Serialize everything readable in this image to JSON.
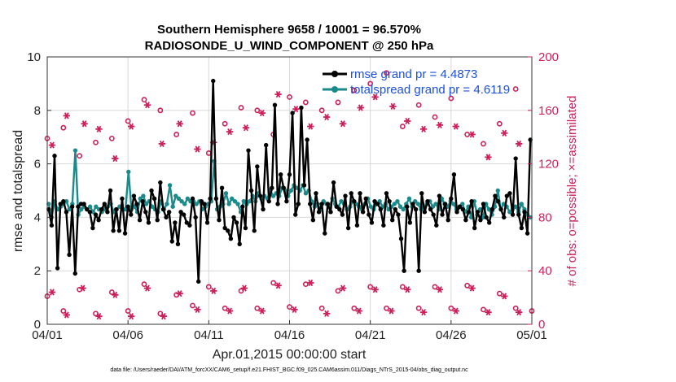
{
  "chart_data": {
    "type": "line",
    "title_line1": "Southern Hemisphere 9658 / 10001 = 96.570%",
    "title_line2": "RADIOSONDE_U_WIND_COMPONENT @ 250 hPa",
    "ylabel": "rmse and totalspread",
    "y2label": "# of obs: o=possible; ×=assimilated",
    "xlabel": "Apr.01,2015 00:00:00 start",
    "footnote": "data file: /Users/raeder/DAI/ATM_forcXX/CAM6_setup/f.e21.FHIST_BGC.f09_025.CAM6assim.011/Diags_NTrS_2015-04/obs_diag_output.nc",
    "xlim": [
      0,
      30
    ],
    "ylim": [
      0,
      10
    ],
    "y2lim": [
      0,
      200
    ],
    "x_ticks": [
      0,
      5,
      10,
      15,
      20,
      25,
      30
    ],
    "x_tick_labels": [
      "04/01",
      "04/06",
      "04/11",
      "04/16",
      "04/21",
      "04/26",
      "05/01"
    ],
    "y_ticks": [
      "0",
      "2",
      "4",
      "6",
      "8",
      "10"
    ],
    "y2_ticks": [
      "0",
      "40",
      "80",
      "120",
      "160",
      "200"
    ],
    "colors": {
      "rmse": "#000000",
      "spread": "#1a8a8a",
      "obs": "#cc1f5a",
      "legend_text": "#1d4fe0"
    },
    "series": [
      {
        "name": "rmse grand pr = 4.4873",
        "values": [
          4.3,
          3.7,
          6.3,
          2.1,
          4.5,
          4.6,
          4.2,
          2.6,
          4.4,
          1.9,
          4.4,
          4.5,
          4.5,
          4.3,
          4.2,
          3.6,
          4.1,
          3.9,
          4.3,
          4.5,
          4.2,
          5.0,
          3.5,
          4.3,
          3.5,
          4.7,
          3.4,
          4.4,
          4.1,
          4.8,
          4.5,
          3.9,
          4.6,
          4.2,
          3.8,
          5.0,
          4.7,
          3.9,
          5.3,
          4.3,
          4.0,
          4.2,
          3.1,
          3.8,
          3.0,
          4.2,
          4.1,
          3.8,
          3.7,
          4.7,
          4.0,
          1.6,
          4.6,
          4.5,
          3.8,
          4.7,
          9.1,
          4.7,
          3.9,
          5.1,
          3.6,
          3.5,
          3.2,
          4.0,
          3.8,
          3.0,
          4.4,
          3.6,
          6.5,
          5.0,
          3.5,
          5.9,
          4.8,
          4.3,
          6.7,
          4.6,
          5.1,
          8.2,
          4.5,
          5.6,
          5.1,
          4.6,
          5.6,
          7.9,
          4.1,
          4.5,
          8.1,
          5.2,
          6.9,
          4.5,
          3.9,
          4.9,
          4.2,
          4.5,
          3.4,
          4.5,
          4.2,
          5.3,
          4.4,
          4.3,
          4.1,
          4.8,
          3.6,
          4.9,
          4.6,
          3.7,
          4.9,
          4.2,
          4.7,
          4.1,
          3.8,
          4.6,
          4.5,
          4.3,
          3.7,
          4.9,
          4.6,
          3.9,
          4.3,
          4.1,
          3.2,
          2.0,
          4.4,
          3.8,
          4.5,
          4.3,
          2.0,
          4.9,
          4.2,
          4.6,
          4.3,
          4.1,
          3.7,
          4.8,
          4.1,
          4.5,
          3.9,
          4.7,
          5.6,
          4.2,
          4.4,
          4.3,
          3.9,
          4.2,
          4.6,
          3.6,
          4.2,
          3.9,
          4.5,
          4.0,
          3.8,
          4.3,
          4.8,
          4.6,
          4.3,
          4.0,
          4.8,
          4.9,
          4.1,
          6.2,
          4.1,
          3.6,
          4.2,
          3.4,
          6.9
        ],
        "color": "#000000"
      },
      {
        "name": "totalspread grand pr = 4.6119",
        "values": [
          4.5,
          4.0,
          4.6,
          4.3,
          4.4,
          4.5,
          4.6,
          4.3,
          4.5,
          6.5,
          4.1,
          4.3,
          4.4,
          4.3,
          4.4,
          4.2,
          4.4,
          4.3,
          4.2,
          4.3,
          4.4,
          4.5,
          4.2,
          4.3,
          4.4,
          4.3,
          4.3,
          5.7,
          4.3,
          4.4,
          4.2,
          4.7,
          4.8,
          4.5,
          4.6,
          4.4,
          4.3,
          4.2,
          4.6,
          4.3,
          4.5,
          5.2,
          4.4,
          4.8,
          4.7,
          4.6,
          4.5,
          4.7,
          4.6,
          4.6,
          4.5,
          4.6,
          4.3,
          4.4,
          4.5,
          4.6,
          6.1,
          4.3,
          4.4,
          4.5,
          4.9,
          4.5,
          4.7,
          4.6,
          4.5,
          4.2,
          4.6,
          4.5,
          4.6,
          4.8,
          4.6,
          4.9,
          4.7,
          4.8,
          4.7,
          5.0,
          4.8,
          4.9,
          4.8,
          5.1,
          5.0,
          4.8,
          5.0,
          5.2,
          5.1,
          5.0,
          5.2,
          4.9,
          5.0,
          4.6,
          4.4,
          4.5,
          4.3,
          4.6,
          4.5,
          4.4,
          4.7,
          4.5,
          4.4,
          4.6,
          4.5,
          4.3,
          4.4,
          4.6,
          4.5,
          4.4,
          4.3,
          4.5,
          4.7,
          4.4,
          4.3,
          4.5,
          4.6,
          4.4,
          4.5,
          4.3,
          4.4,
          4.5,
          4.6,
          4.4,
          4.3,
          4.5,
          4.7,
          4.4,
          4.6,
          4.5,
          4.3,
          4.4,
          4.5,
          4.6,
          4.4,
          4.5,
          4.3,
          4.7,
          4.5,
          4.4,
          4.6,
          4.5,
          4.3,
          4.4,
          4.5,
          4.2,
          4.4,
          4.0,
          4.6,
          4.1,
          4.3,
          4.0,
          4.5,
          4.3,
          4.1,
          4.4,
          5.0,
          4.3,
          4.5,
          4.4,
          4.2,
          4.3,
          4.4,
          4.2,
          4.5,
          4.3,
          4.1,
          4.0
        ],
        "color": "#1a8a8a"
      }
    ],
    "obs_assimilated_high": [
      {
        "x": 0.3,
        "y": 134
      },
      {
        "x": 1.2,
        "y": 156
      },
      {
        "x": 2.3,
        "y": 150
      },
      {
        "x": 3.2,
        "y": 146
      },
      {
        "x": 4.2,
        "y": 124
      },
      {
        "x": 5.2,
        "y": 148
      },
      {
        "x": 6.2,
        "y": 164
      },
      {
        "x": 7.1,
        "y": 135
      },
      {
        "x": 8.2,
        "y": 150
      },
      {
        "x": 9.3,
        "y": 131
      },
      {
        "x": 10.3,
        "y": 136
      },
      {
        "x": 11.3,
        "y": 144
      },
      {
        "x": 12.3,
        "y": 147
      },
      {
        "x": 13.3,
        "y": 158
      },
      {
        "x": 14.3,
        "y": 172
      },
      {
        "x": 15.4,
        "y": 161
      },
      {
        "x": 16.3,
        "y": 148
      },
      {
        "x": 17.3,
        "y": 155
      },
      {
        "x": 18.3,
        "y": 150
      },
      {
        "x": 19.4,
        "y": 162
      },
      {
        "x": 20.3,
        "y": 170
      },
      {
        "x": 21.4,
        "y": 163
      },
      {
        "x": 22.3,
        "y": 152
      },
      {
        "x": 23.3,
        "y": 146
      },
      {
        "x": 24.3,
        "y": 149
      },
      {
        "x": 25.3,
        "y": 148
      },
      {
        "x": 26.3,
        "y": 142
      },
      {
        "x": 27.3,
        "y": 125
      },
      {
        "x": 28.3,
        "y": 143
      },
      {
        "x": 29.2,
        "y": 135
      }
    ],
    "obs_possible_high": [
      {
        "x": 0.0,
        "y": 139
      },
      {
        "x": 1.0,
        "y": 147
      },
      {
        "x": 2.0,
        "y": 126
      },
      {
        "x": 3.0,
        "y": 136
      },
      {
        "x": 4.0,
        "y": 139
      },
      {
        "x": 5.0,
        "y": 152
      },
      {
        "x": 6.0,
        "y": 168
      },
      {
        "x": 7.0,
        "y": 160
      },
      {
        "x": 8.0,
        "y": 142
      },
      {
        "x": 9.0,
        "y": 158
      },
      {
        "x": 10.0,
        "y": 128
      },
      {
        "x": 11.0,
        "y": 150
      },
      {
        "x": 12.0,
        "y": 162
      },
      {
        "x": 13.0,
        "y": 160
      },
      {
        "x": 14.0,
        "y": 142
      },
      {
        "x": 15.0,
        "y": 170
      },
      {
        "x": 16.0,
        "y": 166
      },
      {
        "x": 17.0,
        "y": 160
      },
      {
        "x": 18.0,
        "y": 166
      },
      {
        "x": 19.0,
        "y": 175
      },
      {
        "x": 20.0,
        "y": 180
      },
      {
        "x": 21.0,
        "y": 188
      },
      {
        "x": 22.0,
        "y": 148
      },
      {
        "x": 23.0,
        "y": 164
      },
      {
        "x": 24.0,
        "y": 155
      },
      {
        "x": 25.0,
        "y": 169
      },
      {
        "x": 26.0,
        "y": 142
      },
      {
        "x": 27.0,
        "y": 135
      },
      {
        "x": 28.0,
        "y": 150
      },
      {
        "x": 29.0,
        "y": 176
      }
    ],
    "obs_assimilated_low": [
      {
        "x": 0.3,
        "y": 24
      },
      {
        "x": 1.2,
        "y": 7
      },
      {
        "x": 2.2,
        "y": 27
      },
      {
        "x": 3.2,
        "y": 6
      },
      {
        "x": 4.2,
        "y": 22
      },
      {
        "x": 5.2,
        "y": 6
      },
      {
        "x": 6.2,
        "y": 27
      },
      {
        "x": 7.2,
        "y": 6
      },
      {
        "x": 8.2,
        "y": 23
      },
      {
        "x": 9.3,
        "y": 11
      },
      {
        "x": 10.3,
        "y": 25
      },
      {
        "x": 11.3,
        "y": 10
      },
      {
        "x": 12.2,
        "y": 27
      },
      {
        "x": 13.3,
        "y": 10
      },
      {
        "x": 14.3,
        "y": 29
      },
      {
        "x": 15.3,
        "y": 11
      },
      {
        "x": 16.3,
        "y": 31
      },
      {
        "x": 17.3,
        "y": 8
      },
      {
        "x": 18.3,
        "y": 27
      },
      {
        "x": 19.3,
        "y": 10
      },
      {
        "x": 20.3,
        "y": 26
      },
      {
        "x": 21.3,
        "y": 10
      },
      {
        "x": 22.3,
        "y": 26
      },
      {
        "x": 23.3,
        "y": 9
      },
      {
        "x": 24.3,
        "y": 26
      },
      {
        "x": 25.3,
        "y": 10
      },
      {
        "x": 26.3,
        "y": 27
      },
      {
        "x": 27.3,
        "y": 9
      },
      {
        "x": 28.3,
        "y": 21
      },
      {
        "x": 29.2,
        "y": 9
      }
    ],
    "obs_possible_low": [
      {
        "x": 0.0,
        "y": 21
      },
      {
        "x": 1.0,
        "y": 10
      },
      {
        "x": 2.0,
        "y": 26
      },
      {
        "x": 3.0,
        "y": 8
      },
      {
        "x": 4.0,
        "y": 24
      },
      {
        "x": 5.0,
        "y": 10
      },
      {
        "x": 6.0,
        "y": 30
      },
      {
        "x": 7.0,
        "y": 8
      },
      {
        "x": 8.0,
        "y": 22
      },
      {
        "x": 9.0,
        "y": 14
      },
      {
        "x": 10.0,
        "y": 28
      },
      {
        "x": 11.0,
        "y": 12
      },
      {
        "x": 12.0,
        "y": 25
      },
      {
        "x": 13.0,
        "y": 12
      },
      {
        "x": 14.0,
        "y": 31
      },
      {
        "x": 15.0,
        "y": 13
      },
      {
        "x": 16.0,
        "y": 30
      },
      {
        "x": 17.0,
        "y": 12
      },
      {
        "x": 18.0,
        "y": 25
      },
      {
        "x": 19.0,
        "y": 12
      },
      {
        "x": 20.0,
        "y": 28
      },
      {
        "x": 21.0,
        "y": 12
      },
      {
        "x": 22.0,
        "y": 28
      },
      {
        "x": 23.0,
        "y": 12
      },
      {
        "x": 24.0,
        "y": 28
      },
      {
        "x": 25.0,
        "y": 12
      },
      {
        "x": 26.0,
        "y": 29
      },
      {
        "x": 27.0,
        "y": 11
      },
      {
        "x": 28.0,
        "y": 23
      },
      {
        "x": 29.0,
        "y": 12
      },
      {
        "x": 30.0,
        "y": 10
      }
    ]
  }
}
